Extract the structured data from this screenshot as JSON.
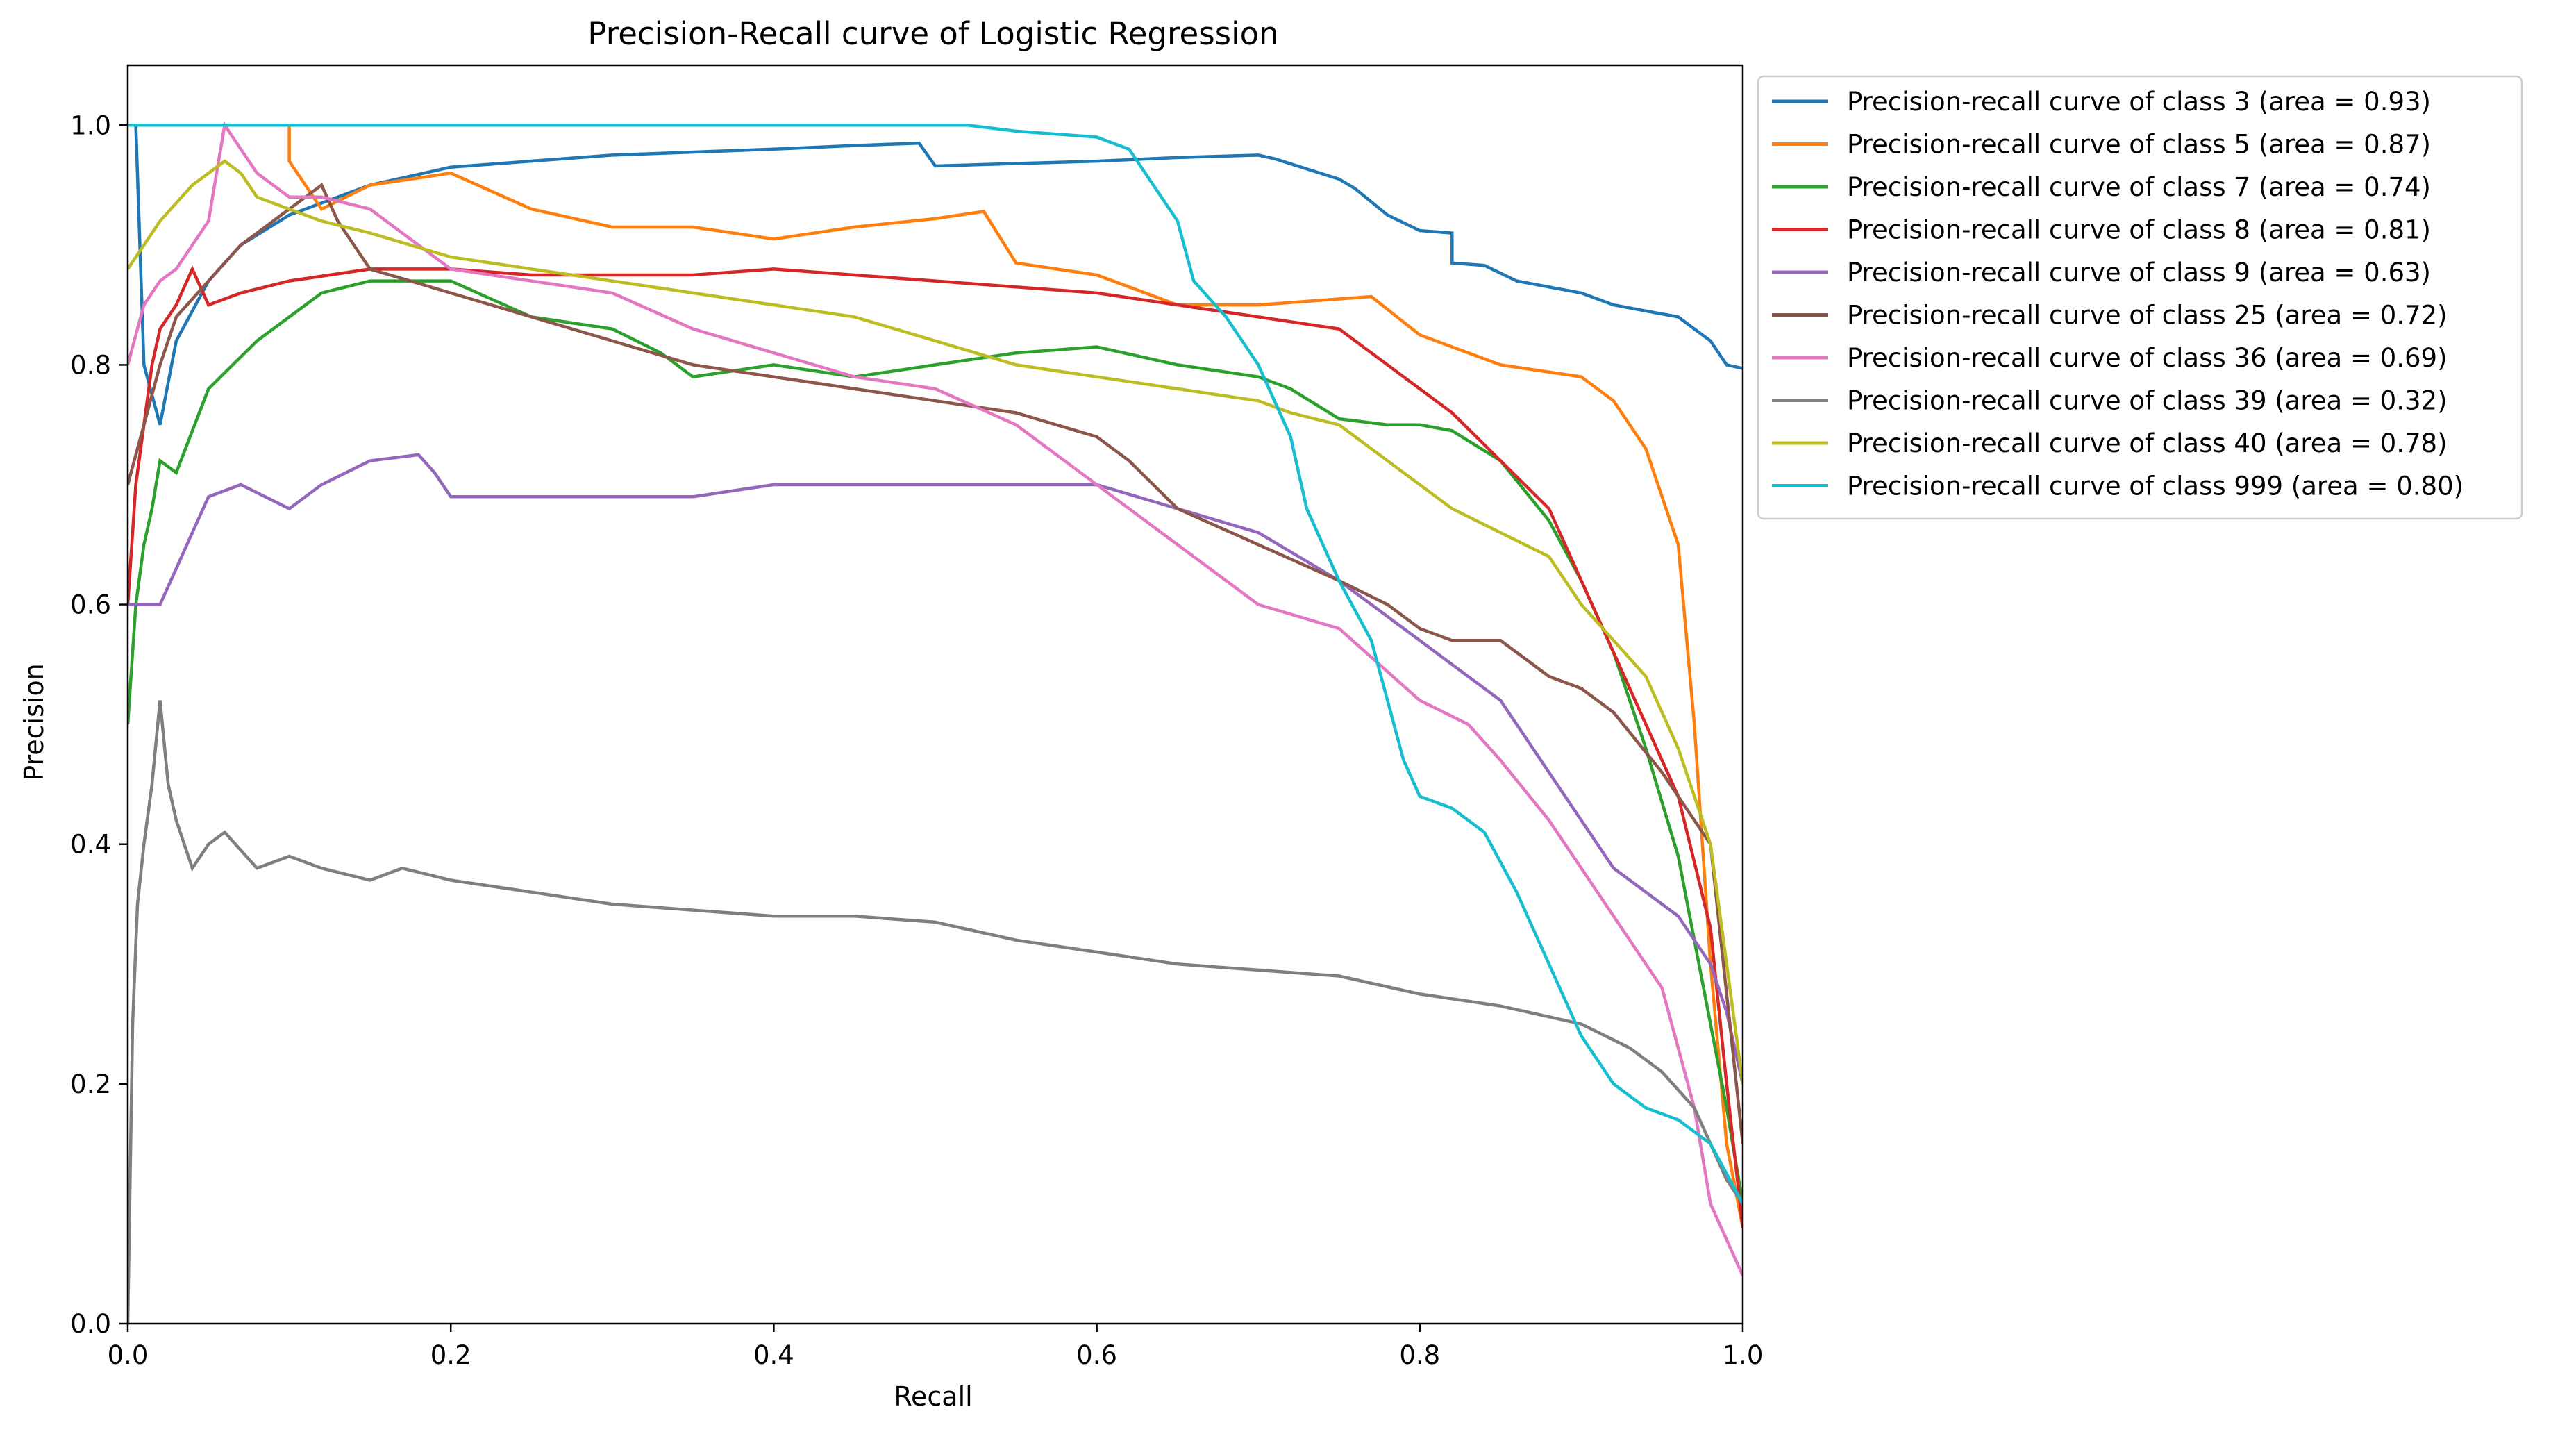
{
  "chart_data": {
    "type": "line",
    "title": "Precision-Recall curve of Logistic Regression",
    "xlabel": "Recall",
    "ylabel": "Precision",
    "xlim": [
      0.0,
      1.0
    ],
    "ylim": [
      0.0,
      1.05
    ],
    "xticks": [
      "0.0",
      "0.2",
      "0.4",
      "0.6",
      "0.8",
      "1.0"
    ],
    "yticks": [
      "0.0",
      "0.2",
      "0.4",
      "0.6",
      "0.8",
      "1.0"
    ],
    "grid": false,
    "legend_position": "outside-top-right",
    "series": [
      {
        "name": "Precision-recall curve of class 3 (area = 0.93)",
        "color": "#1f77b4",
        "x": [
          0.0,
          0.005,
          0.01,
          0.02,
          0.03,
          0.05,
          0.07,
          0.1,
          0.15,
          0.2,
          0.3,
          0.4,
          0.45,
          0.49,
          0.5,
          0.55,
          0.6,
          0.65,
          0.7,
          0.71,
          0.75,
          0.76,
          0.78,
          0.8,
          0.82,
          0.82,
          0.84,
          0.86,
          0.88,
          0.9,
          0.92,
          0.94,
          0.96,
          0.97,
          0.98,
          0.99,
          1.0
        ],
        "y": [
          1.0,
          1.0,
          0.8,
          0.75,
          0.82,
          0.87,
          0.9,
          0.925,
          0.95,
          0.965,
          0.975,
          0.98,
          0.983,
          0.985,
          0.966,
          0.968,
          0.97,
          0.973,
          0.975,
          0.972,
          0.955,
          0.947,
          0.925,
          0.912,
          0.91,
          0.885,
          0.883,
          0.87,
          0.865,
          0.86,
          0.85,
          0.845,
          0.84,
          0.83,
          0.82,
          0.8,
          0.797
        ]
      },
      {
        "name": "Precision-recall curve of class 5 (area = 0.87)",
        "color": "#ff7f0e",
        "x": [
          0.0,
          0.05,
          0.1,
          0.1,
          0.12,
          0.15,
          0.2,
          0.25,
          0.3,
          0.35,
          0.4,
          0.45,
          0.5,
          0.53,
          0.55,
          0.6,
          0.65,
          0.7,
          0.75,
          0.77,
          0.8,
          0.85,
          0.9,
          0.92,
          0.94,
          0.96,
          0.97,
          0.98,
          0.99,
          1.0
        ],
        "y": [
          1.0,
          1.0,
          1.0,
          0.97,
          0.93,
          0.95,
          0.96,
          0.93,
          0.915,
          0.915,
          0.905,
          0.915,
          0.922,
          0.928,
          0.885,
          0.875,
          0.85,
          0.85,
          0.855,
          0.857,
          0.825,
          0.8,
          0.79,
          0.77,
          0.73,
          0.65,
          0.5,
          0.3,
          0.15,
          0.08
        ]
      },
      {
        "name": "Precision-recall curve of class 7 (area = 0.74)",
        "color": "#2ca02c",
        "x": [
          0.0,
          0.005,
          0.01,
          0.015,
          0.02,
          0.03,
          0.05,
          0.08,
          0.1,
          0.12,
          0.15,
          0.2,
          0.25,
          0.3,
          0.33,
          0.35,
          0.4,
          0.45,
          0.5,
          0.55,
          0.6,
          0.65,
          0.7,
          0.72,
          0.75,
          0.78,
          0.8,
          0.82,
          0.85,
          0.88,
          0.9,
          0.92,
          0.94,
          0.96,
          0.97,
          0.98,
          0.99,
          1.0
        ],
        "y": [
          0.5,
          0.6,
          0.65,
          0.68,
          0.72,
          0.71,
          0.78,
          0.82,
          0.84,
          0.86,
          0.87,
          0.87,
          0.84,
          0.83,
          0.81,
          0.79,
          0.8,
          0.79,
          0.8,
          0.81,
          0.815,
          0.8,
          0.79,
          0.78,
          0.755,
          0.75,
          0.75,
          0.745,
          0.72,
          0.67,
          0.62,
          0.56,
          0.48,
          0.39,
          0.32,
          0.25,
          0.18,
          0.1
        ]
      },
      {
        "name": "Precision-recall curve of class 8 (area = 0.81)",
        "color": "#d62728",
        "x": [
          0.0,
          0.005,
          0.01,
          0.015,
          0.02,
          0.03,
          0.04,
          0.05,
          0.07,
          0.1,
          0.15,
          0.2,
          0.25,
          0.3,
          0.35,
          0.4,
          0.45,
          0.5,
          0.55,
          0.6,
          0.65,
          0.7,
          0.75,
          0.78,
          0.8,
          0.82,
          0.85,
          0.88,
          0.9,
          0.92,
          0.94,
          0.96,
          0.98,
          0.99,
          1.0
        ],
        "y": [
          0.6,
          0.7,
          0.75,
          0.8,
          0.83,
          0.85,
          0.88,
          0.85,
          0.86,
          0.87,
          0.88,
          0.88,
          0.875,
          0.875,
          0.875,
          0.88,
          0.875,
          0.87,
          0.865,
          0.86,
          0.85,
          0.84,
          0.83,
          0.8,
          0.78,
          0.76,
          0.72,
          0.68,
          0.62,
          0.56,
          0.5,
          0.44,
          0.33,
          0.2,
          0.08
        ]
      },
      {
        "name": "Precision-recall curve of class 9 (area = 0.63)",
        "color": "#9467bd",
        "x": [
          0.0,
          0.01,
          0.02,
          0.03,
          0.04,
          0.05,
          0.07,
          0.1,
          0.12,
          0.15,
          0.18,
          0.19,
          0.2,
          0.25,
          0.3,
          0.35,
          0.4,
          0.45,
          0.5,
          0.55,
          0.6,
          0.65,
          0.7,
          0.75,
          0.8,
          0.82,
          0.85,
          0.88,
          0.9,
          0.92,
          0.94,
          0.96,
          0.98,
          0.99,
          1.0
        ],
        "y": [
          0.6,
          0.6,
          0.6,
          0.63,
          0.66,
          0.69,
          0.7,
          0.68,
          0.7,
          0.72,
          0.725,
          0.71,
          0.69,
          0.69,
          0.69,
          0.69,
          0.7,
          0.7,
          0.7,
          0.7,
          0.7,
          0.68,
          0.66,
          0.62,
          0.57,
          0.55,
          0.52,
          0.46,
          0.42,
          0.38,
          0.36,
          0.34,
          0.3,
          0.26,
          0.2
        ]
      },
      {
        "name": "Precision-recall curve of class 25 (area = 0.72)",
        "color": "#8c564b",
        "x": [
          0.0,
          0.01,
          0.02,
          0.03,
          0.05,
          0.07,
          0.1,
          0.12,
          0.13,
          0.15,
          0.2,
          0.25,
          0.3,
          0.35,
          0.4,
          0.45,
          0.5,
          0.55,
          0.6,
          0.62,
          0.65,
          0.7,
          0.75,
          0.78,
          0.8,
          0.82,
          0.85,
          0.88,
          0.9,
          0.92,
          0.95,
          0.98,
          1.0
        ],
        "y": [
          0.7,
          0.75,
          0.8,
          0.84,
          0.87,
          0.9,
          0.93,
          0.95,
          0.92,
          0.88,
          0.86,
          0.84,
          0.82,
          0.8,
          0.79,
          0.78,
          0.77,
          0.76,
          0.74,
          0.72,
          0.68,
          0.65,
          0.62,
          0.6,
          0.58,
          0.57,
          0.57,
          0.54,
          0.53,
          0.51,
          0.46,
          0.4,
          0.15
        ]
      },
      {
        "name": "Precision-recall curve of class 36 (area = 0.69)",
        "color": "#e377c2",
        "x": [
          0.0,
          0.01,
          0.02,
          0.03,
          0.05,
          0.06,
          0.08,
          0.1,
          0.12,
          0.15,
          0.18,
          0.2,
          0.25,
          0.3,
          0.35,
          0.4,
          0.45,
          0.5,
          0.55,
          0.6,
          0.65,
          0.7,
          0.75,
          0.8,
          0.83,
          0.85,
          0.88,
          0.9,
          0.92,
          0.95,
          0.97,
          0.98,
          0.99,
          1.0
        ],
        "y": [
          0.8,
          0.85,
          0.87,
          0.88,
          0.92,
          1.0,
          0.96,
          0.94,
          0.94,
          0.93,
          0.9,
          0.88,
          0.87,
          0.86,
          0.83,
          0.81,
          0.79,
          0.78,
          0.75,
          0.7,
          0.65,
          0.6,
          0.58,
          0.52,
          0.5,
          0.47,
          0.42,
          0.38,
          0.34,
          0.28,
          0.18,
          0.1,
          0.07,
          0.04
        ]
      },
      {
        "name": "Precision-recall curve of class 39 (area = 0.32)",
        "color": "#7f7f7f",
        "x": [
          0.0,
          0.003,
          0.006,
          0.01,
          0.015,
          0.02,
          0.025,
          0.03,
          0.04,
          0.05,
          0.06,
          0.08,
          0.1,
          0.12,
          0.15,
          0.17,
          0.2,
          0.25,
          0.3,
          0.35,
          0.4,
          0.45,
          0.5,
          0.55,
          0.6,
          0.65,
          0.7,
          0.75,
          0.8,
          0.85,
          0.9,
          0.93,
          0.95,
          0.97,
          0.98,
          0.99,
          1.0
        ],
        "y": [
          0.0,
          0.25,
          0.35,
          0.4,
          0.45,
          0.52,
          0.45,
          0.42,
          0.38,
          0.4,
          0.41,
          0.38,
          0.39,
          0.38,
          0.37,
          0.38,
          0.37,
          0.36,
          0.35,
          0.345,
          0.34,
          0.34,
          0.335,
          0.32,
          0.31,
          0.3,
          0.295,
          0.29,
          0.275,
          0.265,
          0.25,
          0.23,
          0.21,
          0.18,
          0.15,
          0.12,
          0.1
        ]
      },
      {
        "name": "Precision-recall curve of class 40 (area = 0.78)",
        "color": "#bcbd22",
        "x": [
          0.0,
          0.01,
          0.02,
          0.04,
          0.06,
          0.07,
          0.08,
          0.1,
          0.12,
          0.15,
          0.2,
          0.25,
          0.3,
          0.35,
          0.4,
          0.45,
          0.5,
          0.55,
          0.6,
          0.65,
          0.7,
          0.72,
          0.75,
          0.78,
          0.8,
          0.82,
          0.85,
          0.88,
          0.9,
          0.92,
          0.94,
          0.96,
          0.98,
          0.99,
          1.0
        ],
        "y": [
          0.88,
          0.9,
          0.92,
          0.95,
          0.97,
          0.96,
          0.94,
          0.93,
          0.92,
          0.91,
          0.89,
          0.88,
          0.87,
          0.86,
          0.85,
          0.84,
          0.82,
          0.8,
          0.79,
          0.78,
          0.77,
          0.76,
          0.75,
          0.72,
          0.7,
          0.68,
          0.66,
          0.64,
          0.6,
          0.57,
          0.54,
          0.48,
          0.4,
          0.3,
          0.2
        ]
      },
      {
        "name": "Precision-recall curve of class 999 (area = 0.80)",
        "color": "#17becf",
        "x": [
          0.0,
          0.1,
          0.2,
          0.3,
          0.4,
          0.5,
          0.52,
          0.55,
          0.6,
          0.62,
          0.63,
          0.65,
          0.66,
          0.68,
          0.7,
          0.72,
          0.73,
          0.75,
          0.77,
          0.78,
          0.79,
          0.8,
          0.82,
          0.84,
          0.86,
          0.88,
          0.9,
          0.92,
          0.94,
          0.96,
          0.98,
          1.0
        ],
        "y": [
          1.0,
          1.0,
          1.0,
          1.0,
          1.0,
          1.0,
          1.0,
          0.995,
          0.99,
          0.98,
          0.96,
          0.92,
          0.87,
          0.84,
          0.8,
          0.74,
          0.68,
          0.62,
          0.57,
          0.52,
          0.47,
          0.44,
          0.43,
          0.41,
          0.36,
          0.3,
          0.24,
          0.2,
          0.18,
          0.17,
          0.15,
          0.1
        ]
      }
    ]
  }
}
